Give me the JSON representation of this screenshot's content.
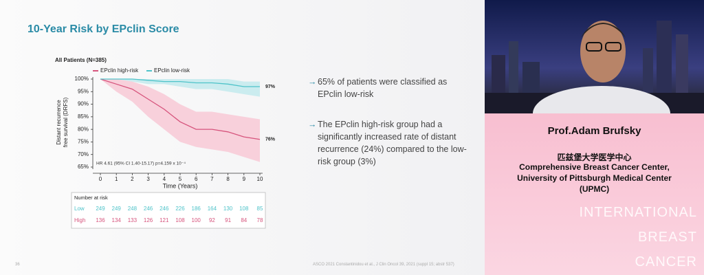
{
  "slide": {
    "title": "10-Year Risk by EPclin Score",
    "bullets": [
      "65% of patients were classified as EPclin low-risk",
      "The EPclin high-risk group had a significantly increased rate of distant recurrence (24%) compared to the low-risk group (3%)"
    ],
    "page_number": "36",
    "footer": "ASCO 2021 Constantinidou et al., J Clin Oncol 39, 2021 (suppl 15; abstr 537)"
  },
  "chart_data": {
    "type": "line",
    "title": "All Patients (N=385)",
    "x_label": "Time (Years)",
    "y_label": [
      "Distant recurrence",
      "free survival (DRFS)"
    ],
    "annotation": "HR 4.61 (95% CI 1.40-15.17) p=4.159 x 10⁻⁴",
    "x": [
      0,
      1,
      2,
      3,
      4,
      5,
      6,
      7,
      8,
      9,
      10
    ],
    "xlim": [
      0,
      10
    ],
    "xticks": [
      0,
      1,
      2,
      3,
      4,
      5,
      6,
      7,
      8,
      9,
      10
    ],
    "ylim": [
      65,
      100
    ],
    "yticks": [
      {
        "value": 65,
        "label": "65%"
      },
      {
        "value": 70,
        "label": "70%"
      },
      {
        "value": 75,
        "label": "75%"
      },
      {
        "value": 80,
        "label": "80%"
      },
      {
        "value": 85,
        "label": "85%"
      },
      {
        "value": 90,
        "label": "90%"
      },
      {
        "value": 95,
        "label": "95%"
      },
      {
        "value": 100,
        "label": "100%"
      }
    ],
    "series": [
      {
        "name": "EPclin high-risk",
        "color": "#d6537c",
        "band_color": "#f8c9d6",
        "values": [
          100,
          98,
          96,
          92,
          88,
          83,
          80,
          80,
          79,
          77,
          76
        ],
        "ci_upper": [
          100,
          100,
          99,
          97,
          94,
          90,
          87,
          87,
          86,
          85,
          84
        ],
        "ci_lower": [
          100,
          95,
          91,
          85,
          80,
          75,
          73,
          72,
          71,
          69,
          67
        ],
        "end_label": "76%"
      },
      {
        "name": "EPclin low-risk",
        "color": "#4ec3c9",
        "band_color": "#c3eaed",
        "values": [
          100,
          100,
          100,
          99.5,
          99,
          99,
          98.5,
          98.5,
          98,
          97,
          97
        ],
        "ci_upper": [
          100,
          100,
          100,
          100,
          100,
          100,
          100,
          100,
          100,
          99,
          99
        ],
        "ci_lower": [
          100,
          100,
          99,
          98,
          98,
          97,
          96,
          96,
          95,
          94,
          93
        ],
        "end_label": "97%"
      }
    ]
  },
  "risk_table": {
    "title": "Number at risk",
    "rows": [
      {
        "label": "Low",
        "color": "#4ec3c9",
        "values": [
          249,
          249,
          248,
          246,
          246,
          226,
          186,
          164,
          130,
          108,
          85
        ]
      },
      {
        "label": "High",
        "color": "#d6537c",
        "values": [
          136,
          134,
          133,
          126,
          121,
          108,
          100,
          92,
          91,
          84,
          78
        ]
      }
    ]
  },
  "speaker": {
    "name": "Prof.Adam Brufsky",
    "affiliation": [
      "匹兹堡大学医学中心",
      "Comprehensive Breast Cancer Center,",
      "University of Pittsburgh Medical Center",
      "(UPMC)"
    ],
    "watermark": [
      "INTERNATIONAL",
      "BREAST",
      "CANCER"
    ]
  }
}
